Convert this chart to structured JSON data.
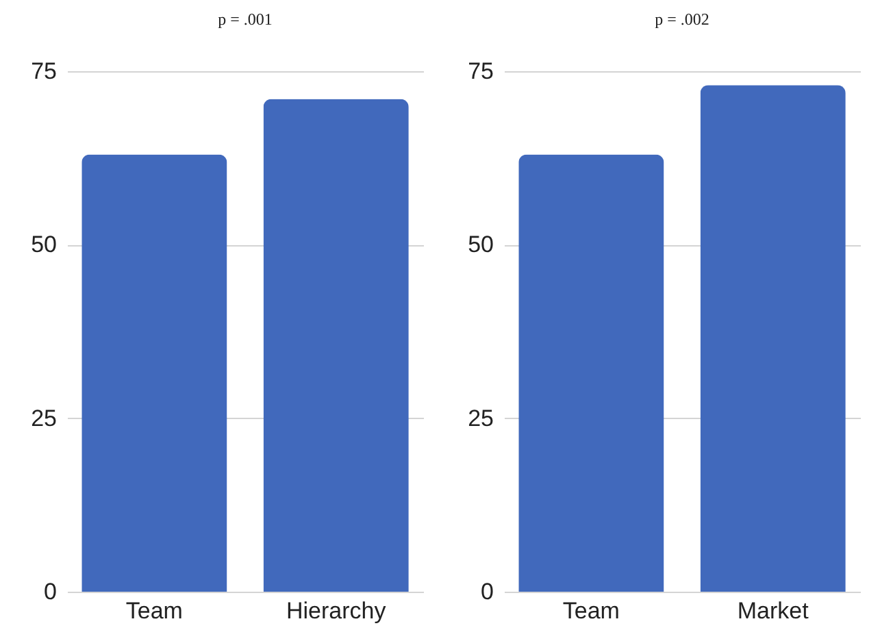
{
  "chart_data": [
    {
      "type": "bar",
      "title": "p = .001",
      "categories": [
        "Team",
        "Hierarchy"
      ],
      "values": [
        63,
        71
      ],
      "color": "#4169bc",
      "ylim": [
        0,
        75
      ],
      "yticks": [
        0,
        25,
        50,
        75
      ],
      "grid": "y"
    },
    {
      "type": "bar",
      "title": "p = .002",
      "categories": [
        "Team",
        "Market"
      ],
      "values": [
        63,
        73
      ],
      "color": "#4169bc",
      "ylim": [
        0,
        75
      ],
      "yticks": [
        0,
        25,
        50,
        75
      ],
      "grid": "y"
    }
  ]
}
